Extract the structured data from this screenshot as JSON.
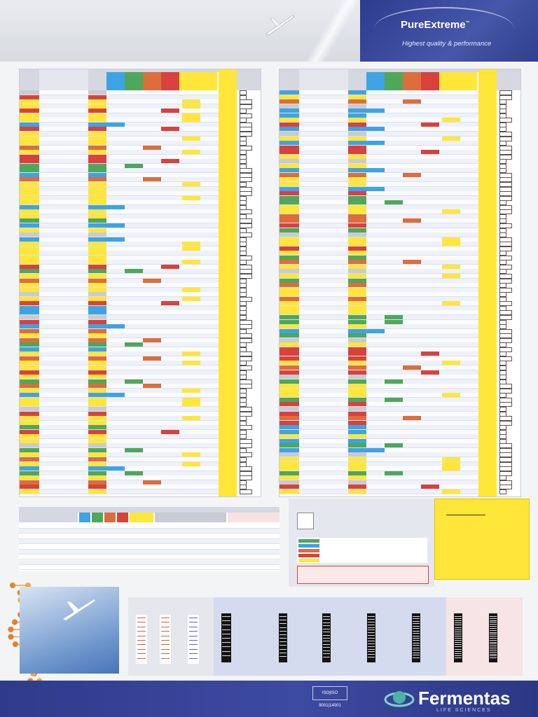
{
  "header": {
    "brand": "PureExtreme",
    "trademark": "™",
    "tagline": "Highest quality & performance"
  },
  "footer": {
    "company": "Fermentas",
    "division": "LIFE SCIENCES",
    "iso_badge": "ISO|ISO 9001|14001"
  },
  "colors": {
    "yellow": "#ffe638",
    "blue": "#3ea3e3",
    "green": "#4ea75a",
    "orange": "#dd6d3b",
    "red": "#d9413d",
    "navy": "#2f3b8a"
  },
  "icons": [
    "airplane-icon",
    "enzyme-pictogram-icon",
    "dna-helix-icon",
    "fermentas-globe-logo-icon",
    "arrow-right-icon"
  ]
}
